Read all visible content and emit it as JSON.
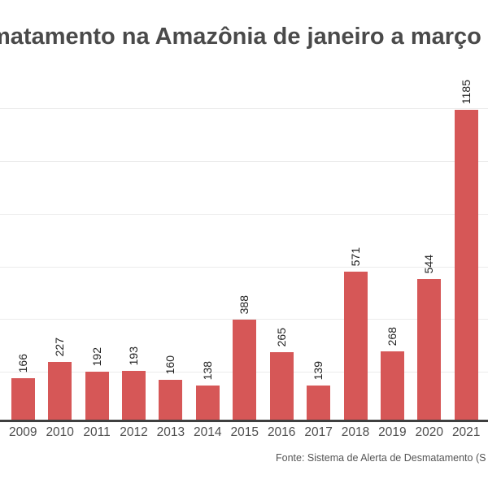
{
  "title": {
    "text": "matamento na Amazônia de janeiro a março"
  },
  "footer": {
    "source": "Fonte: Sistema de Alerta de Desmatamento (S"
  },
  "colors": {
    "background": "#ffffff",
    "bar": "#d65757",
    "gridline": "#ebebeb",
    "axis_line": "#3f3f3f",
    "title_text": "#4a4a4a",
    "value_label_text": "#222222",
    "tick_label_text": "#4f4f4f",
    "source_text": "#555555"
  },
  "chart_data": {
    "type": "bar",
    "title": "matamento na Amazônia de janeiro a março",
    "categories": [
      "2009",
      "2010",
      "2011",
      "2012",
      "2013",
      "2014",
      "2015",
      "2016",
      "2017",
      "2018",
      "2019",
      "2020",
      "2021"
    ],
    "values": [
      166,
      227,
      192,
      193,
      160,
      138,
      388,
      265,
      139,
      571,
      268,
      544,
      1185
    ],
    "xlabel": "",
    "ylabel": "",
    "ylim": [
      0,
      1200
    ],
    "y_gridlines": [
      200,
      400,
      600,
      800,
      1000,
      1200
    ],
    "grid": "horizontal-only",
    "legend": "none",
    "data_labels": "rotated-90-above-bars",
    "source": "Fonte: Sistema de Alerta de Desmatamento (S"
  }
}
